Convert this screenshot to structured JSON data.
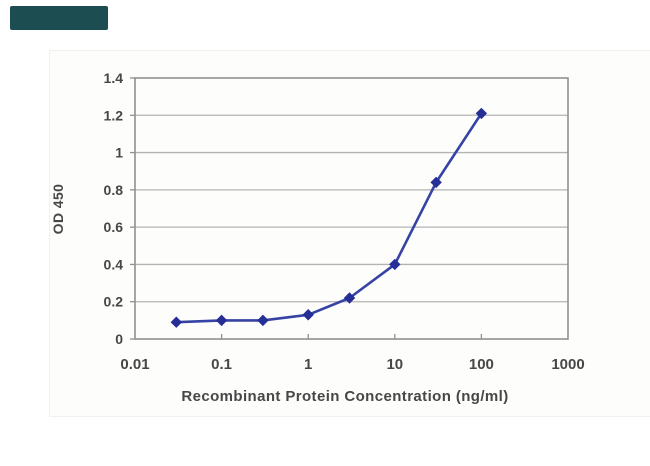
{
  "page": {
    "background": "#ffffff",
    "badge": {
      "color": "#1c4d50",
      "label": ""
    }
  },
  "chart_data": {
    "type": "line",
    "title": "",
    "xlabel": "Recombinant Protein Concentration (ng/ml)",
    "ylabel": "OD 450",
    "x_scale": "log",
    "xlim": [
      0.01,
      1000
    ],
    "ylim": [
      0,
      1.4
    ],
    "x_tick_values": [
      0.01,
      0.1,
      1,
      10,
      100,
      1000
    ],
    "x_tick_labels": [
      "0.01",
      "0.1",
      "1",
      "10",
      "100",
      "1000"
    ],
    "y_tick_values": [
      0,
      0.2,
      0.4,
      0.6,
      0.8,
      1,
      1.2,
      1.4
    ],
    "y_tick_labels": [
      "0",
      "0.2",
      "0.4",
      "0.6",
      "0.8",
      "1",
      "1.2",
      "1.4"
    ],
    "grid": "horizontal",
    "legend": "none",
    "x": [
      0.03,
      0.1,
      0.3,
      1,
      3,
      10,
      30,
      100
    ],
    "series": [
      {
        "name": "OD 450",
        "marker": "diamond",
        "values": [
          0.09,
          0.1,
          0.1,
          0.13,
          0.22,
          0.4,
          0.84,
          1.21
        ]
      }
    ]
  },
  "colors": {
    "line": "#3643a4",
    "marker_fill": "#262f96",
    "gridline": "#b3b3b3",
    "axis_frame": "#909090",
    "tick": "#909090",
    "text": "#474747"
  }
}
